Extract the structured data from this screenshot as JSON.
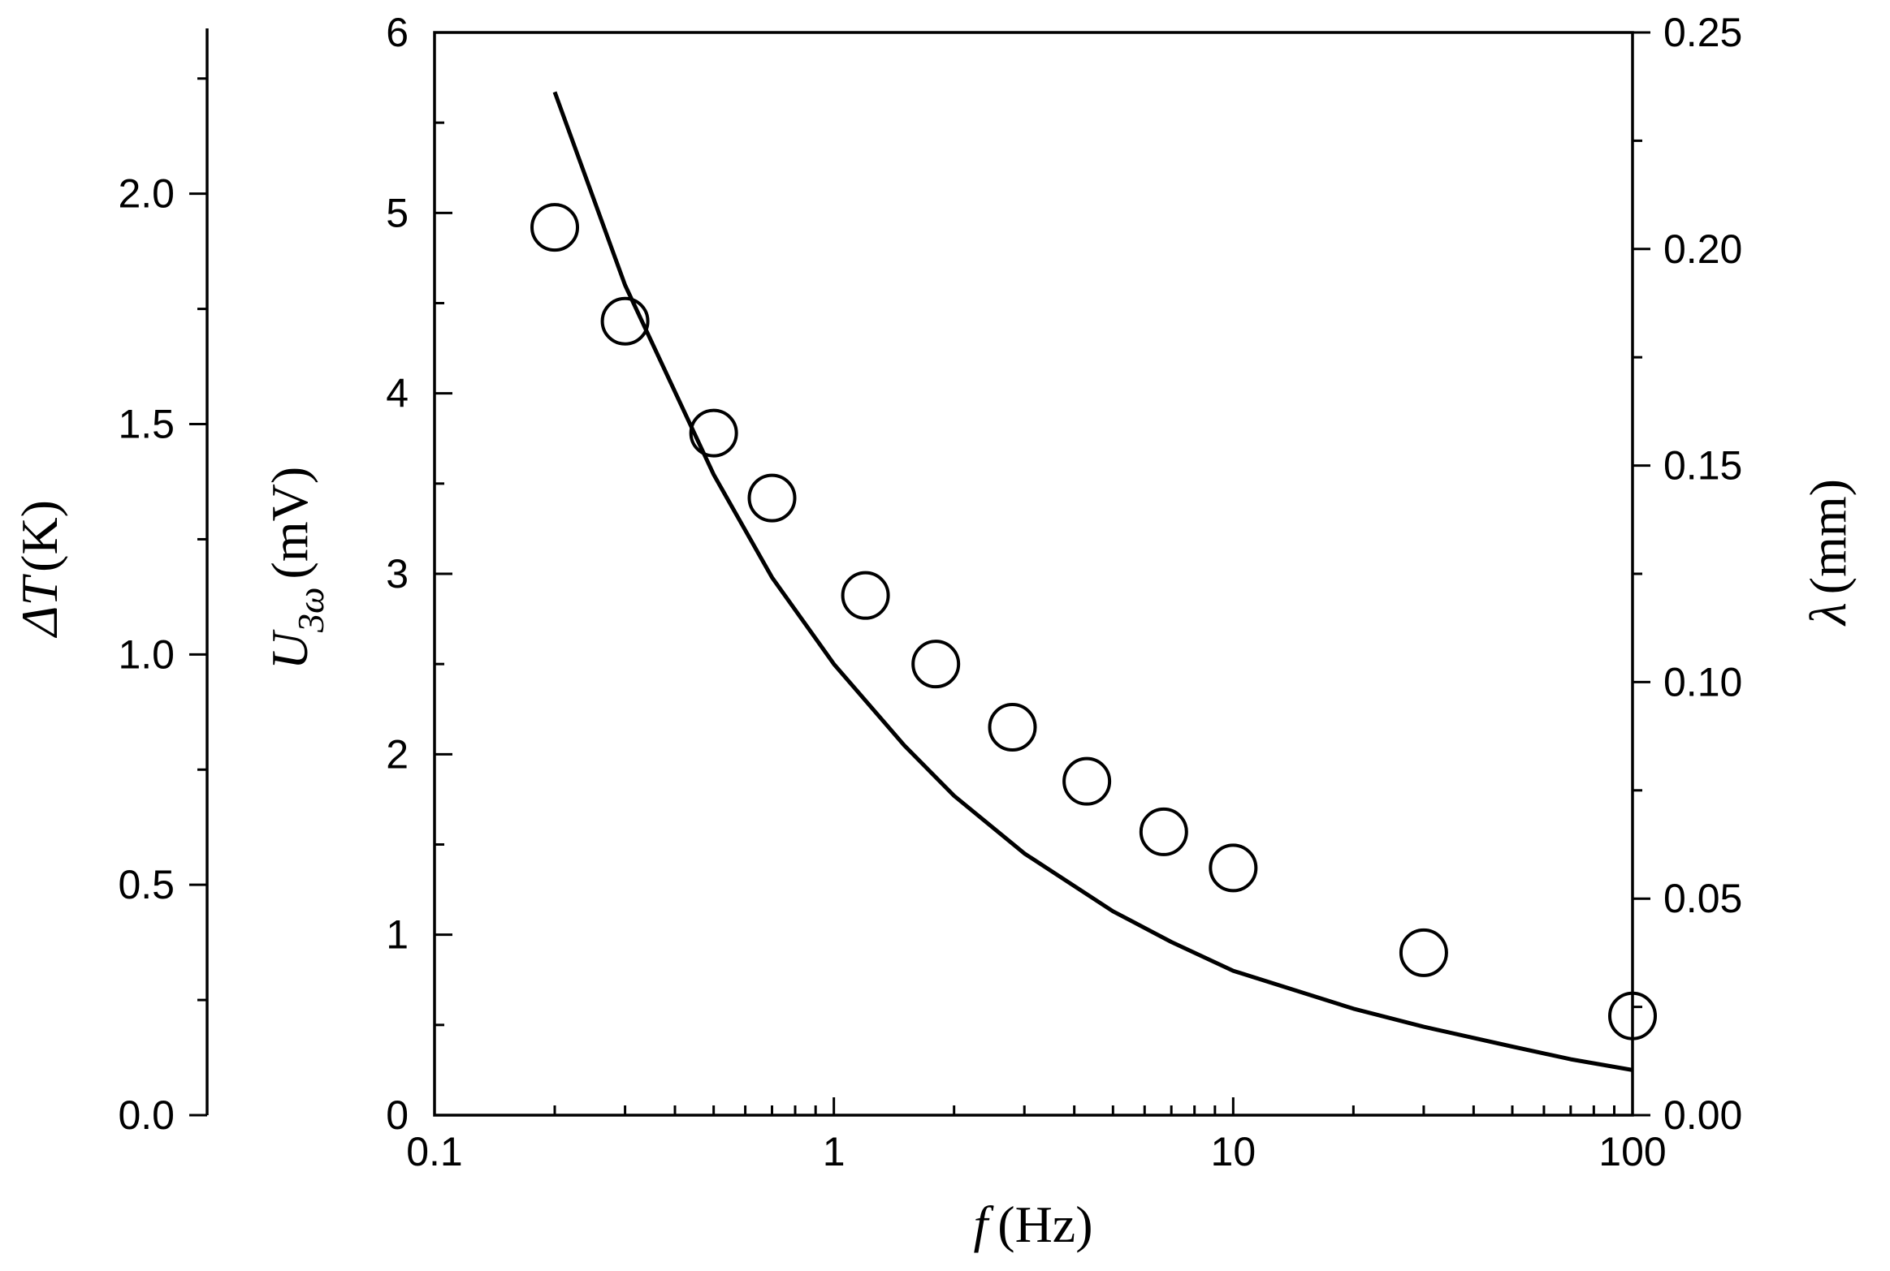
{
  "chart_data": {
    "type": "scatter",
    "x_scale": "log",
    "xlim": [
      0.1,
      100
    ],
    "x_ticks": [
      "0.1",
      "1",
      "10",
      "100"
    ],
    "xlabel": {
      "symbol": "f",
      "unit": "(Hz)"
    },
    "axes": {
      "left_outer": {
        "label": {
          "symbol": "ΔT",
          "unit": "(K)"
        },
        "range": [
          0.0,
          2.35
        ],
        "ticks": [
          "0.0",
          "0.5",
          "1.0",
          "1.5",
          "2.0"
        ]
      },
      "left": {
        "label": {
          "symbol": "U",
          "subscript": "3ω",
          "unit": "(mV)"
        },
        "range": [
          0,
          6
        ],
        "ticks": [
          "0",
          "1",
          "2",
          "3",
          "4",
          "5",
          "6"
        ]
      },
      "right": {
        "label": {
          "symbol": "λ",
          "unit": "(mm)"
        },
        "range": [
          0.0,
          0.25
        ],
        "ticks": [
          "0.00",
          "0.05",
          "0.10",
          "0.15",
          "0.20",
          "0.25"
        ]
      }
    },
    "series": [
      {
        "kind": "markers",
        "marker": "open-circle",
        "axis": "left",
        "points": [
          {
            "x": 0.2,
            "y": 4.92
          },
          {
            "x": 0.3,
            "y": 4.4
          },
          {
            "x": 0.5,
            "y": 3.78
          },
          {
            "x": 0.7,
            "y": 3.42
          },
          {
            "x": 1.2,
            "y": 2.88
          },
          {
            "x": 1.8,
            "y": 2.5
          },
          {
            "x": 2.8,
            "y": 2.15
          },
          {
            "x": 4.3,
            "y": 1.85
          },
          {
            "x": 6.7,
            "y": 1.57
          },
          {
            "x": 10,
            "y": 1.37
          },
          {
            "x": 30,
            "y": 0.9
          },
          {
            "x": 100,
            "y": 0.55
          }
        ]
      },
      {
        "kind": "line",
        "axis": "left",
        "points": [
          {
            "x": 0.2,
            "y": 5.67
          },
          {
            "x": 0.3,
            "y": 4.6
          },
          {
            "x": 0.5,
            "y": 3.55
          },
          {
            "x": 0.7,
            "y": 2.98
          },
          {
            "x": 1.0,
            "y": 2.5
          },
          {
            "x": 1.5,
            "y": 2.05
          },
          {
            "x": 2.0,
            "y": 1.77
          },
          {
            "x": 3.0,
            "y": 1.45
          },
          {
            "x": 5.0,
            "y": 1.13
          },
          {
            "x": 7.0,
            "y": 0.96
          },
          {
            "x": 10,
            "y": 0.8
          },
          {
            "x": 20,
            "y": 0.59
          },
          {
            "x": 30,
            "y": 0.49
          },
          {
            "x": 50,
            "y": 0.38
          },
          {
            "x": 70,
            "y": 0.31
          },
          {
            "x": 100,
            "y": 0.25
          }
        ]
      }
    ],
    "grid": false,
    "colors": {
      "foreground": "#000000",
      "background": "#ffffff"
    }
  }
}
